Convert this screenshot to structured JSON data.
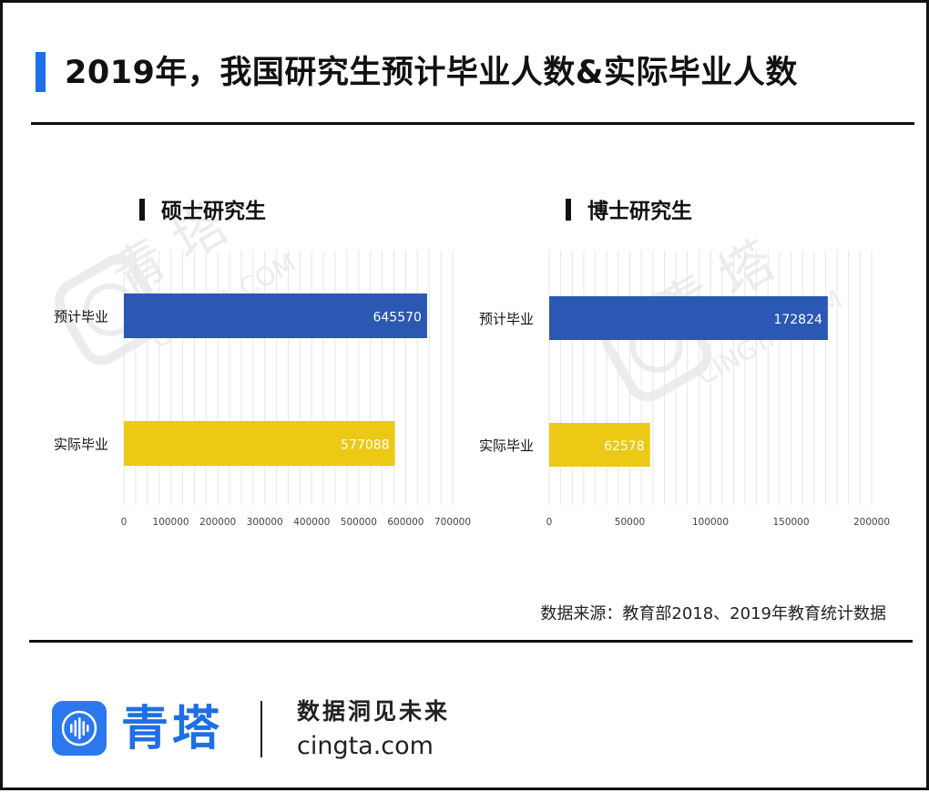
{
  "page": {
    "title": "2019年，我国研究生预计毕业人数&实际毕业人数",
    "source": "数据来源：教育部2018、2019年教育统计数据"
  },
  "footer": {
    "brand_name": "青塔",
    "tagline": "数据洞见未来",
    "url": "cingta.com"
  },
  "watermark": {
    "brand": "青 塔",
    "url": "CINGTA.COM"
  },
  "colors": {
    "accent": "#1f6fe8",
    "predicted_bar": "#2a58b3",
    "actual_bar": "#ecc915",
    "grid": "#e6e6e6",
    "rule": "#111111"
  },
  "chart_data": [
    {
      "type": "bar",
      "orientation": "horizontal",
      "title": "硕士研究生",
      "categories": [
        "预计毕业",
        "实际毕业"
      ],
      "values": [
        645570,
        577088
      ],
      "value_labels": [
        "645570",
        "577088"
      ],
      "bar_colors": [
        "#2a58b3",
        "#ecc915"
      ],
      "xlim": [
        0,
        700000
      ],
      "xticks": [
        0,
        100000,
        200000,
        300000,
        400000,
        500000,
        600000,
        700000
      ],
      "xtick_labels": [
        "0",
        "100000",
        "200000",
        "300000",
        "400000",
        "500000",
        "600000",
        "700000"
      ],
      "grid": true
    },
    {
      "type": "bar",
      "orientation": "horizontal",
      "title": "博士研究生",
      "categories": [
        "预计毕业",
        "实际毕业"
      ],
      "values": [
        172824,
        62578
      ],
      "value_labels": [
        "172824",
        "62578"
      ],
      "bar_colors": [
        "#2a58b3",
        "#ecc915"
      ],
      "xlim": [
        0,
        200000
      ],
      "xticks": [
        0,
        50000,
        100000,
        150000,
        200000
      ],
      "xtick_labels": [
        "0",
        "50000",
        "100000",
        "150000",
        "200000"
      ],
      "grid": true
    }
  ]
}
